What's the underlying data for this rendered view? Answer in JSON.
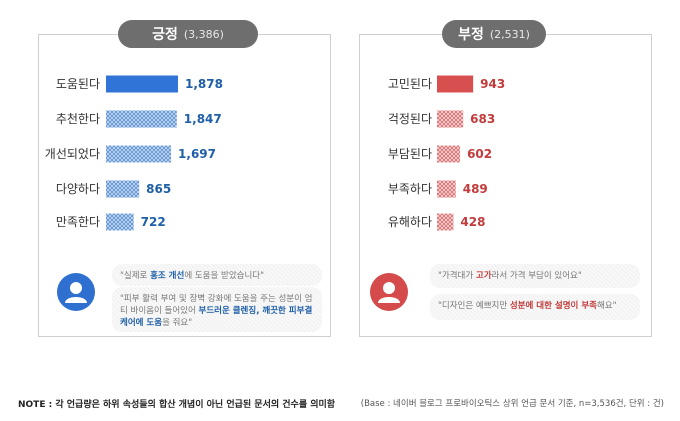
{
  "colors": {
    "positive_top": "#2f74d6",
    "positive": "#8fb4e3",
    "negative_top": "#d84f4f",
    "negative": "#efb1b1",
    "pill": "#6e6e6e",
    "value_blue": "#1e5fa8",
    "value_red": "#c23b3b"
  },
  "icons": {
    "positive_avatar": "user-avatar-icon",
    "negative_avatar": "user-avatar-icon"
  },
  "chart_data": [
    {
      "type": "bar",
      "orientation": "horizontal",
      "title": "긍정",
      "total": "(3,386)",
      "categories": [
        "도움된다",
        "추천한다",
        "개선되었다",
        "다양하다",
        "만족한다"
      ],
      "values": [
        1878,
        1847,
        1697,
        865,
        722
      ],
      "value_labels": [
        "1,878",
        "1,847",
        "1,697",
        "865",
        "722"
      ],
      "xlim": [
        0,
        2000
      ]
    },
    {
      "type": "bar",
      "orientation": "horizontal",
      "title": "부정",
      "total": "(2,531)",
      "categories": [
        "고민된다",
        "걱정된다",
        "부담된다",
        "부족하다",
        "유해하다"
      ],
      "values": [
        943,
        683,
        602,
        489,
        428
      ],
      "value_labels": [
        "943",
        "683",
        "602",
        "489",
        "428"
      ],
      "xlim": [
        0,
        2000
      ]
    }
  ],
  "positive_quotes": {
    "q1_pre": "\"실제로 ",
    "q1_hl": "홍조 개선",
    "q1_post": "에 도움을 받았습니다\"",
    "q2_pre": "\"피부 활력 부여 및 장벽 강화에 도움을 주는 성분이 엄티 바이옴이 들어있어 ",
    "q2_hl": "부드러운 클렌징, 깨끗한 피부결 케어에 도움",
    "q2_post": "을 줘요\""
  },
  "negative_quotes": {
    "q1_pre": "\"가격대가 ",
    "q1_hl": "고가",
    "q1_post": "라서 가격 부담이 있어요\"",
    "q2_pre": "\"디자인은 예쁘지만 ",
    "q2_hl": "성분에 대한 설명이 부족",
    "q2_post": "해요\""
  },
  "footer": {
    "note_label": "NOTE :",
    "note_text": "각 언급량은 하위 속성들의 합산 개념이 아닌 언급된 문서의 건수를 의미함",
    "source": "(Base : 네이버 블로그 프로바이오틱스 상위 언급 문서 기준, n=3,536건, 단위 : 건)"
  }
}
